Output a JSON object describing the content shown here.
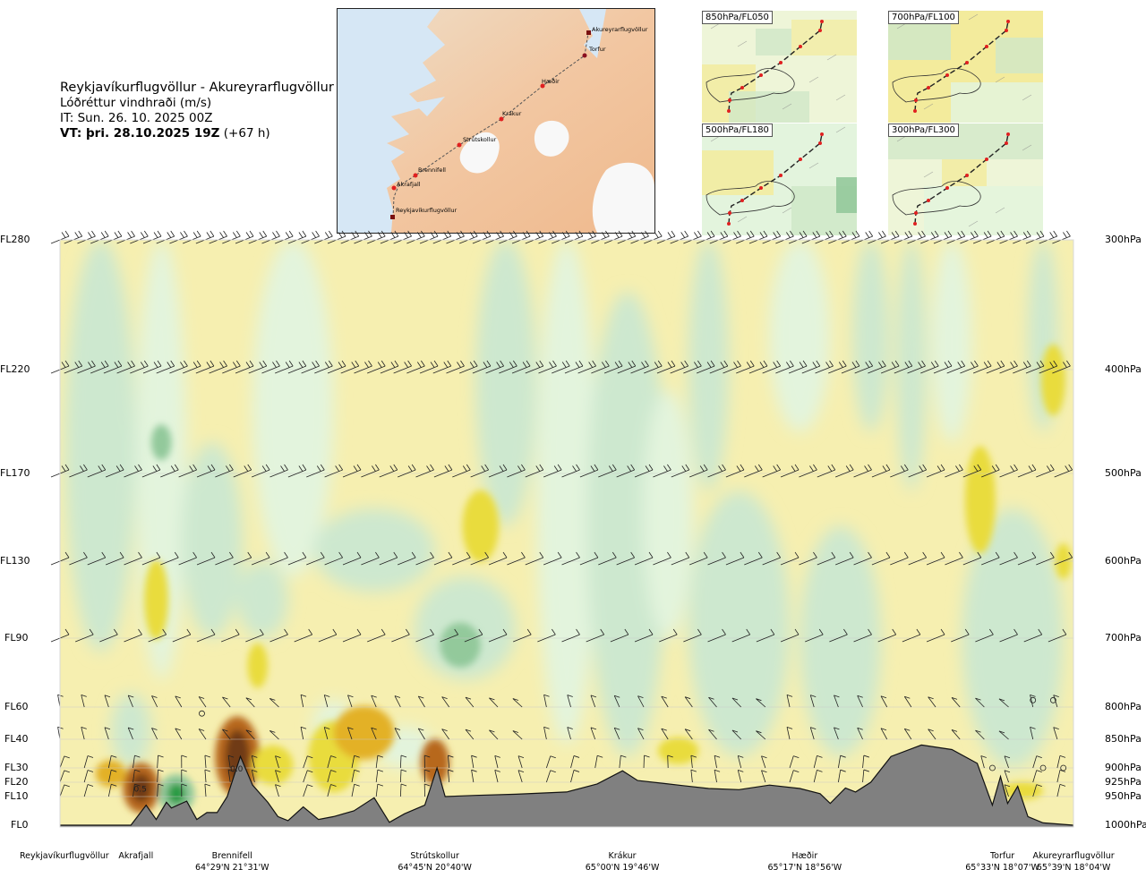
{
  "header": {
    "route": "Reykjavíkurflugvöllur - Akureyrarflugvöllur",
    "variable": "Lóðréttur vindhraði (m/s)",
    "issue_time": "IT: Sun. 26. 10. 2025 00Z",
    "valid_time_label": "VT: þri. 28.10.2025 19Z",
    "valid_time_offset": "(+67 h)"
  },
  "overview_map": {
    "waypoints": [
      "Akureyrarflugvöllur",
      "Torfur",
      "Hæðir",
      "Krákur",
      "Strútskollur",
      "Brennifell",
      "Akrafjall",
      "Reykjavíkurflugvöllur"
    ]
  },
  "mini_maps": [
    {
      "label": "850hPa/FL050"
    },
    {
      "label": "700hPa/FL100"
    },
    {
      "label": "500hPa/FL180"
    },
    {
      "label": "300hPa/FL300"
    }
  ],
  "colors": {
    "weak_updraft": "#f6efb0",
    "updraft": "#e9dc3c",
    "strong_updraft": "#e3b127",
    "very_strong_updraft": "#b7671f",
    "extreme_updraft": "#6f3a12",
    "weak_downdraft": "#e3f4dd",
    "downdraft": "#cde8cf",
    "strong_downdraft": "#93c99b",
    "very_strong_downdraft": "#2a9b44",
    "terrain": "#808080"
  },
  "chart_data": {
    "type": "heatmap",
    "title": "Lóðréttur vindhraði (m/s)",
    "xlabel": "",
    "ylabel": "",
    "flight_levels": [
      {
        "fl": "FL280",
        "hpa": "300hPa",
        "p": 300
      },
      {
        "fl": "FL220",
        "hpa": "400hPa",
        "p": 400
      },
      {
        "fl": "FL170",
        "hpa": "500hPa",
        "p": 500
      },
      {
        "fl": "FL130",
        "hpa": "600hPa",
        "p": 600
      },
      {
        "fl": "FL90",
        "hpa": "700hPa",
        "p": 700
      },
      {
        "fl": "FL60",
        "hpa": "800hPa",
        "p": 800
      },
      {
        "fl": "FL40",
        "hpa": "850hPa",
        "p": 850
      },
      {
        "fl": "FL30",
        "hpa": "900hPa",
        "p": 900
      },
      {
        "fl": "FL20",
        "hpa": "925hPa",
        "p": 925
      },
      {
        "fl": "FL10",
        "hpa": "950hPa",
        "p": 950
      },
      {
        "fl": "FL0",
        "hpa": "1000hPa",
        "p": 1000
      }
    ],
    "waypoints": [
      {
        "name": "Reykjavíkurflugvöllur",
        "coord": "",
        "dist": 0
      },
      {
        "name": "Akrafjall",
        "coord": "",
        "dist": 7.5
      },
      {
        "name": "Brennifell",
        "coord": "64°29'N 21°31'W",
        "dist": 17
      },
      {
        "name": "Strútskollur",
        "coord": "64°45'N 20°40'W",
        "dist": 37
      },
      {
        "name": "Krákur",
        "coord": "65°00'N 19°46'W",
        "dist": 55.5
      },
      {
        "name": "Hæðir",
        "coord": "65°17'N 18°56'W",
        "dist": 73.5
      },
      {
        "name": "Torfur",
        "coord": "65°33'N 18°07'W",
        "dist": 93
      },
      {
        "name": "Akureyrarflugvöllur",
        "coord": "65°39'N 18°04'W",
        "dist": 100
      }
    ],
    "contour_labels": [
      "0.5",
      "0.0"
    ],
    "terrain_pressure_hpa": [
      [
        0,
        1000
      ],
      [
        7,
        1000
      ],
      [
        8.5,
        965
      ],
      [
        9.5,
        990
      ],
      [
        10.5,
        960
      ],
      [
        11,
        970
      ],
      [
        12.5,
        958
      ],
      [
        13.5,
        990
      ],
      [
        14.5,
        978
      ],
      [
        15.5,
        978
      ],
      [
        16.5,
        950
      ],
      [
        17.8,
        880
      ],
      [
        19,
        930
      ],
      [
        20.5,
        960
      ],
      [
        21.5,
        985
      ],
      [
        22.5,
        992
      ],
      [
        24,
        968
      ],
      [
        25.5,
        990
      ],
      [
        27,
        985
      ],
      [
        29,
        975
      ],
      [
        31,
        952
      ],
      [
        32.5,
        995
      ],
      [
        34,
        980
      ],
      [
        36,
        965
      ],
      [
        37.2,
        900
      ],
      [
        38,
        950
      ],
      [
        41,
        948
      ],
      [
        45,
        946
      ],
      [
        50,
        942
      ],
      [
        53,
        928
      ],
      [
        55.5,
        905
      ],
      [
        57,
        922
      ],
      [
        60,
        928
      ],
      [
        64,
        936
      ],
      [
        67,
        938
      ],
      [
        70,
        930
      ],
      [
        73,
        936
      ],
      [
        75,
        945
      ],
      [
        76,
        962
      ],
      [
        77.5,
        935
      ],
      [
        78.5,
        942
      ],
      [
        80,
        925
      ],
      [
        82,
        880
      ],
      [
        85,
        860
      ],
      [
        88,
        868
      ],
      [
        90.5,
        892
      ],
      [
        92,
        965
      ],
      [
        92.8,
        915
      ],
      [
        93.5,
        962
      ],
      [
        94.5,
        932
      ],
      [
        95.5,
        985
      ],
      [
        97,
        996
      ],
      [
        100,
        1000
      ]
    ],
    "barb_levels_hpa": [
      300,
      400,
      500,
      600,
      700,
      800,
      850,
      900,
      925,
      950
    ],
    "updraft_cores": [
      {
        "x": 8,
        "p": 935,
        "value": "0.5"
      },
      {
        "x": 17.5,
        "p": 900,
        "value": "0.0"
      },
      {
        "x": 37,
        "p": 900,
        "value": ""
      },
      {
        "x": 9.5,
        "p": 650,
        "value": ""
      },
      {
        "x": 41.5,
        "p": 560,
        "value": ""
      },
      {
        "x": 90.8,
        "p": 530,
        "value": ""
      },
      {
        "x": 98,
        "p": 410,
        "value": ""
      }
    ],
    "downdraft_cores": [
      {
        "x": 11.5,
        "p": 945,
        "value": ""
      },
      {
        "x": 39.5,
        "p": 710,
        "value": ""
      },
      {
        "x": 10,
        "p": 470,
        "value": ""
      }
    ]
  }
}
